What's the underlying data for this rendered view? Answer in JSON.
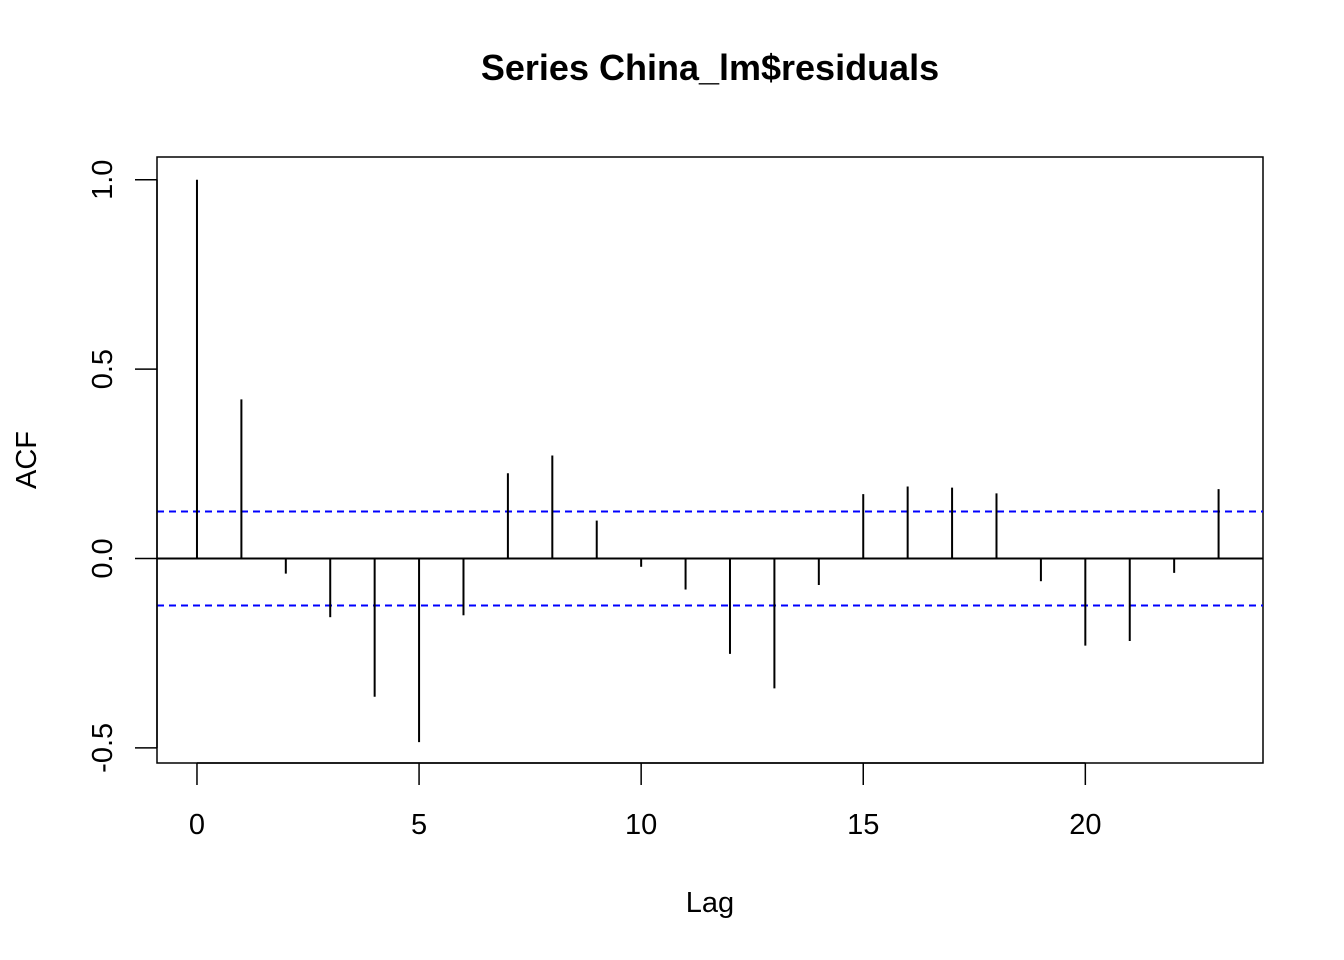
{
  "chart_data": {
    "type": "bar",
    "title": "Series  China_lm$residuals",
    "xlabel": "Lag",
    "ylabel": "ACF",
    "xlim": [
      -0.9,
      24
    ],
    "ylim": [
      -0.54,
      1.06
    ],
    "x_ticks": [
      0,
      5,
      10,
      15,
      20
    ],
    "x_tick_labels": [
      "0",
      "5",
      "10",
      "15",
      "20"
    ],
    "y_ticks": [
      -0.5,
      0.0,
      0.5,
      1.0
    ],
    "y_tick_labels": [
      "-0.5",
      "0.0",
      "0.5",
      "1.0"
    ],
    "lags": [
      0,
      1,
      2,
      3,
      4,
      5,
      6,
      7,
      8,
      9,
      10,
      11,
      12,
      13,
      14,
      15,
      16,
      17,
      18,
      19,
      20,
      21,
      22,
      23
    ],
    "acf": [
      1.0,
      0.42,
      -0.04,
      -0.155,
      -0.365,
      -0.485,
      -0.15,
      0.225,
      0.272,
      0.1,
      -0.022,
      -0.082,
      -0.252,
      -0.343,
      -0.07,
      0.17,
      0.19,
      0.187,
      0.172,
      -0.06,
      -0.23,
      -0.218,
      -0.038,
      0.183
    ],
    "ci_bounds": [
      0.124,
      -0.124
    ],
    "ci_color": "#0000FF",
    "spike_color": "#000000",
    "grid": false,
    "legend": "none"
  }
}
